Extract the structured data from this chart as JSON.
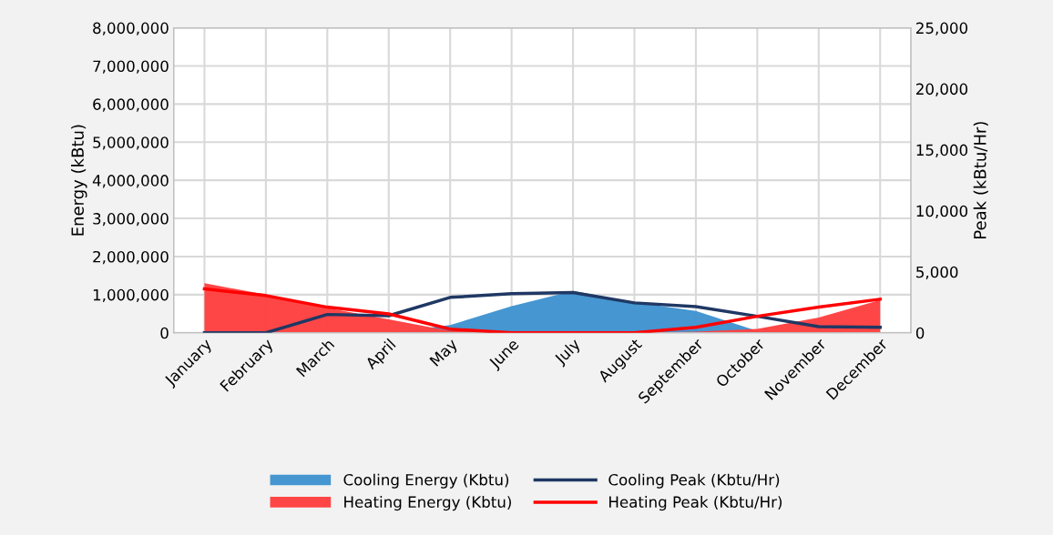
{
  "chart_data": {
    "type": "area",
    "categories": [
      "January",
      "February",
      "March",
      "April",
      "May",
      "June",
      "July",
      "August",
      "September",
      "October",
      "November",
      "December"
    ],
    "ylabel": "Energy (kBtu)",
    "y2label": "Peak (kBtu/Hr)",
    "ylim": [
      0,
      8000000
    ],
    "yticks": [
      {
        "value": 0,
        "label": "0"
      },
      {
        "value": 1000000,
        "label": "1,000,000"
      },
      {
        "value": 2000000,
        "label": "2,000,000"
      },
      {
        "value": 3000000,
        "label": "3,000,000"
      },
      {
        "value": 4000000,
        "label": "4,000,000"
      },
      {
        "value": 5000000,
        "label": "5,000,000"
      },
      {
        "value": 6000000,
        "label": "6,000,000"
      },
      {
        "value": 7000000,
        "label": "7,000,000"
      },
      {
        "value": 8000000,
        "label": "8,000,000"
      }
    ],
    "y2lim": [
      0,
      25000
    ],
    "y2ticks": [
      {
        "value": 0,
        "label": "0"
      },
      {
        "value": 5000,
        "label": "5,000"
      },
      {
        "value": 10000,
        "label": "10,000"
      },
      {
        "value": 15000,
        "label": "15,000"
      },
      {
        "value": 20000,
        "label": "20,000"
      },
      {
        "value": 25000,
        "label": "25,000"
      }
    ],
    "series": [
      {
        "name": "Cooling Energy (Kbtu)",
        "color": "#3f93d0",
        "values": [
          0,
          0,
          0,
          0,
          200000,
          700000,
          1100000,
          800000,
          570000,
          50000,
          0,
          0
        ]
      },
      {
        "name": "Heating Energy (Kbtu)",
        "color": "#ff4040",
        "values": [
          1300000,
          1000000,
          650000,
          350000,
          50000,
          0,
          0,
          0,
          30000,
          100000,
          400000,
          860000
        ]
      },
      {
        "name": "Cooling Peak (Kbtu/Hr)",
        "type": "line",
        "axis": "y2",
        "color": "#1f3864",
        "values": [
          0,
          0,
          1500,
          1400,
          2900,
          3200,
          3300,
          2450,
          2150,
          1350,
          500,
          450
        ]
      },
      {
        "name": "Heating Peak (Kbtu/Hr)",
        "type": "line",
        "axis": "y2",
        "color": "#ff0000",
        "values": [
          3600,
          3050,
          2100,
          1550,
          300,
          0,
          0,
          0,
          450,
          1350,
          2100,
          2750
        ]
      }
    ],
    "grid": true,
    "legend": "bottom"
  }
}
